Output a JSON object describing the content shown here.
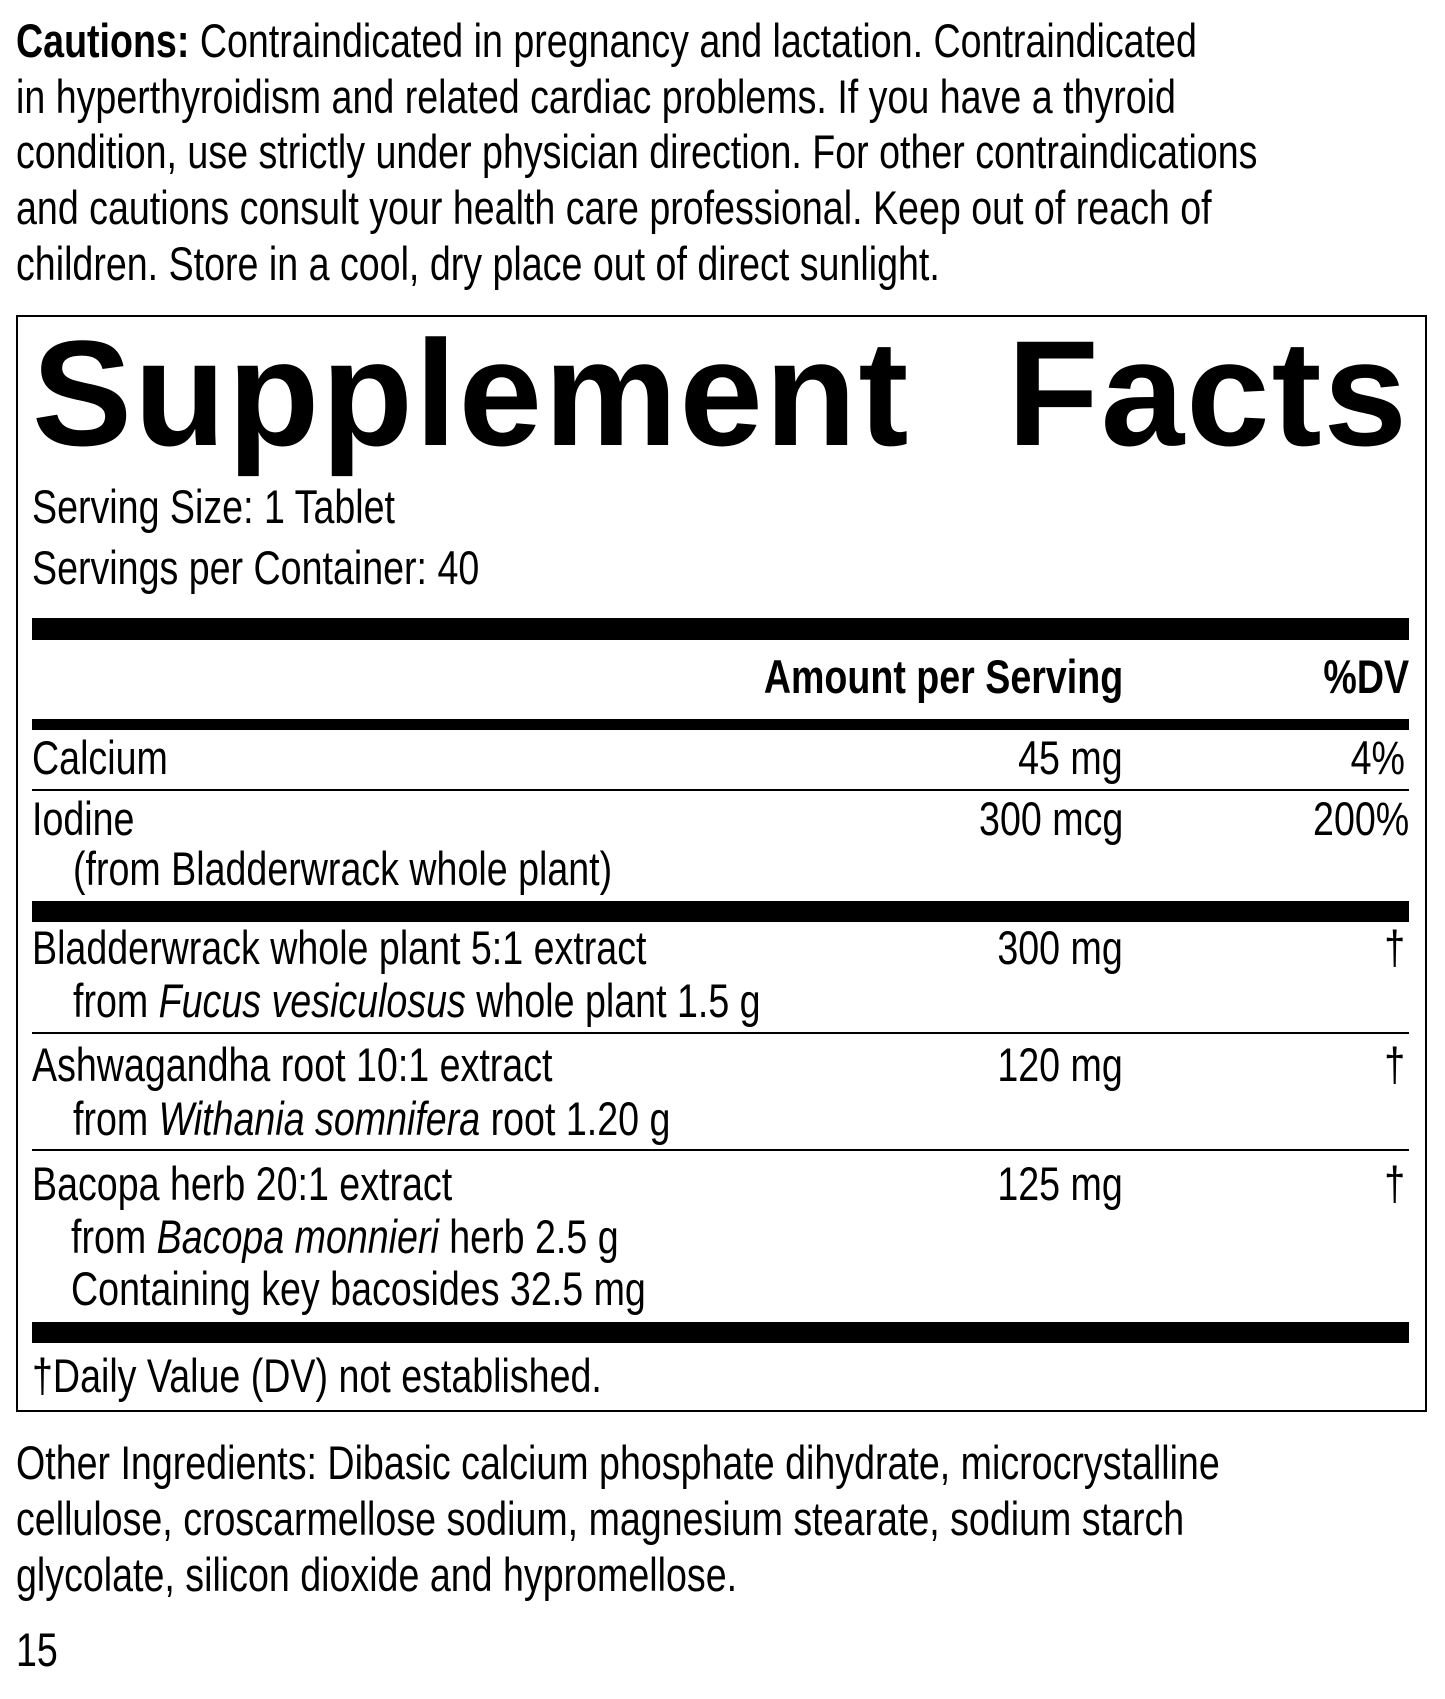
{
  "cautions": {
    "label": "Cautions:",
    "lines": [
      " Contraindicated in pregnancy and lactation. Contraindicated",
      "in hyperthyroidism and related cardiac problems. If you have a thyroid",
      "condition, use strictly under physician direction. For other contraindications",
      "and cautions consult your health care professional. Keep out of reach of",
      "children. Store in a cool, dry place out of direct sunlight."
    ]
  },
  "facts": {
    "title_words": [
      "Supplement",
      "Facts"
    ],
    "serving_size": "Serving Size: 1 Tablet",
    "servings_per_container": "Servings per Container: 40",
    "header_amount": "Amount per Serving",
    "header_dv": "%DV",
    "rows": [
      {
        "name": "Calcium",
        "amount": "45 mg",
        "dv": "4%"
      },
      {
        "name": "Iodine",
        "sub": "(from Bladderwrack whole plant)",
        "amount": "300 mcg",
        "dv": "200%"
      },
      {
        "name": "Bladderwrack whole plant 5:1 extract",
        "sub_pre": "from ",
        "sub_italic": "Fucus vesiculosus",
        "sub_post": " whole plant 1.5 g",
        "amount": "300 mg",
        "dv": "†"
      },
      {
        "name": "Ashwagandha root 10:1 extract",
        "sub_pre": "from ",
        "sub_italic": "Withania somnifera",
        "sub_post": " root 1.20 g",
        "amount": "120 mg",
        "dv": "†"
      },
      {
        "name": "Bacopa herb 20:1 extract",
        "sub_pre": "from ",
        "sub_italic": "Bacopa monnieri",
        "sub_post": " herb 2.5 g",
        "sub2": "Containing key bacosides 32.5 mg",
        "amount": "125 mg",
        "dv": "†"
      }
    ],
    "footnote": "†Daily Value (DV) not established."
  },
  "other_ingredients": {
    "lines": [
      "Other Ingredients: Dibasic calcium phosphate dihydrate, microcrystalline",
      "cellulose, croscarmellose sodium, magnesium stearate, sodium starch",
      "glycolate, silicon dioxide and hypromellose."
    ]
  },
  "page_number": "15"
}
